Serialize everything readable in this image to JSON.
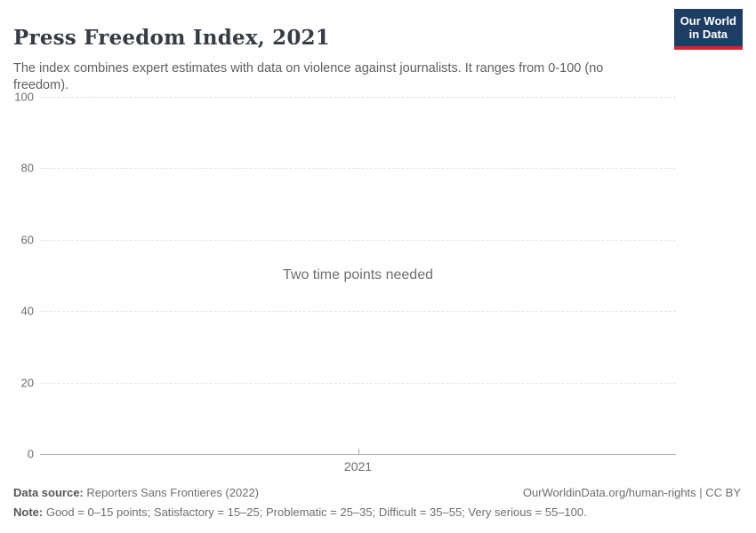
{
  "header": {
    "title": "Press Freedom Index, 2021",
    "subtitle": "The index combines expert estimates with data on violence against journalists. It ranges from 0-100 (no freedom).",
    "logo": {
      "line1": "Our World",
      "line2": "in Data"
    }
  },
  "chart_data": {
    "type": "line",
    "title": "Press Freedom Index, 2021",
    "message": "Two time points needed",
    "series": [],
    "x_categories": [
      "2021"
    ],
    "xticks": [
      "2021"
    ],
    "yticks": [
      0,
      20,
      40,
      60,
      80,
      100
    ],
    "ylim": [
      0,
      100
    ],
    "xlabel": "",
    "ylabel": "",
    "grid": true,
    "legend": "none"
  },
  "footer": {
    "source_label": "Data source:",
    "source_text": " Reporters Sans Frontieres (2022)",
    "citation": "OurWorldinData.org/human-rights | CC BY",
    "note_label": "Note:",
    "note_text": " Good = 0–15 points; Satisfactory = 15–25; Problematic = 25–35; Difficult = 35–55; Very serious = 55–100."
  },
  "colors": {
    "accent_navy": "#1d3d63",
    "logo_red": "#d1242e",
    "title_text": "#363b44",
    "muted_text": "#6e6e6e",
    "grid": "#e3e3e3",
    "axis": "#a8a8a8"
  }
}
